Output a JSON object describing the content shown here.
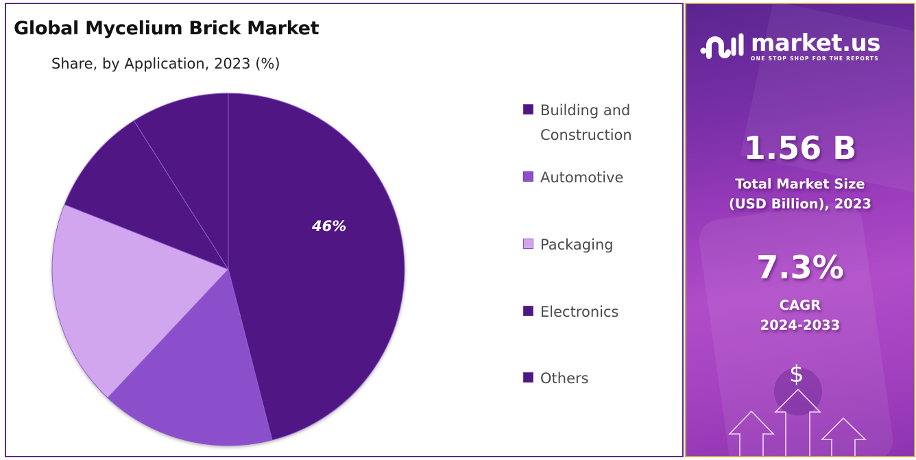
{
  "header": {
    "title": "Global Mycelium Brick Market",
    "subtitle": "Share, by Application, 2023 (%)"
  },
  "chart_data": {
    "type": "pie",
    "title": "Global Mycelium Brick Market",
    "subtitle": "Share, by Application, 2023 (%)",
    "categories": [
      "Building and Construction",
      "Automotive",
      "Packaging",
      "Electronics",
      "Others"
    ],
    "values": [
      46,
      16,
      19,
      10,
      9
    ],
    "colors": [
      "#4f1784",
      "#8b4fcc",
      "#d1a6ee",
      "#4f1784",
      "#4f1784"
    ],
    "data_labels": [
      {
        "category": "Building and Construction",
        "text": "46%"
      }
    ],
    "legend_position": "right",
    "start_angle_deg": 0,
    "direction": "clockwise"
  },
  "pie": {
    "label_main": "46%"
  },
  "legend": {
    "items": [
      {
        "label": "Building and Construction",
        "color": "#4f1784"
      },
      {
        "label": "Automotive",
        "color": "#8b4fcc"
      },
      {
        "label": "Packaging",
        "color": "#d1a6ee"
      },
      {
        "label": "Electronics",
        "color": "#4f1784"
      },
      {
        "label": "Others",
        "color": "#4f1784"
      }
    ]
  },
  "sidebar": {
    "brand_name": "market.us",
    "brand_tagline": "ONE STOP SHOP FOR THE REPORTS",
    "market_size_value": "1.56 B",
    "market_size_label_line1": "Total Market Size",
    "market_size_label_line2": "(USD Billion), 2023",
    "cagr_value": "7.3%",
    "cagr_label_line1": "CAGR",
    "cagr_label_line2": "2024-2033",
    "currency_symbol": "$"
  },
  "colors": {
    "accent_dark": "#4f1784",
    "accent_mid": "#8b4fcc",
    "accent_light": "#d1a6ee",
    "panel_border": "#5c2a86",
    "sidebar_border": "#d9a24a"
  }
}
